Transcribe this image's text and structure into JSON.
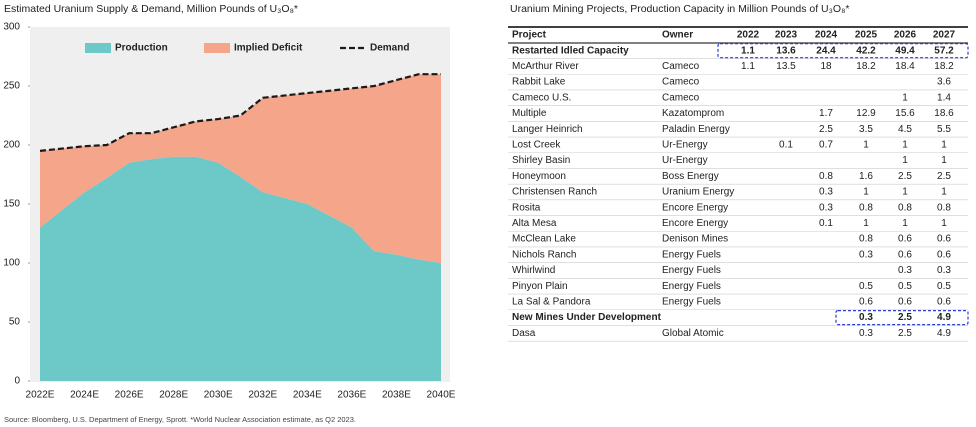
{
  "chart_data": {
    "type": "area",
    "title": "Estimated Uranium Supply & Demand, Million Pounds of U₃O₈*",
    "categories": [
      "2022E",
      null,
      "2024E",
      null,
      "2026E",
      null,
      "2028E",
      null,
      "2030E",
      null,
      "2032E",
      null,
      "2034E",
      null,
      "2036E",
      null,
      "2038E",
      null,
      "2040E"
    ],
    "series": [
      {
        "name": "Production",
        "color": "#6cc9c8",
        "values": [
          130,
          145,
          160,
          172,
          185,
          188,
          190,
          190,
          185,
          173,
          160,
          155,
          150,
          140,
          130,
          110,
          107,
          103,
          100
        ]
      },
      {
        "name": "Implied Deficit",
        "color": "#f4a58a",
        "values": [
          65,
          52,
          39,
          28,
          25,
          22,
          25,
          30,
          37,
          52,
          80,
          87,
          94,
          106,
          118,
          140,
          148,
          157,
          160
        ]
      },
      {
        "name": "Demand",
        "color": "#1a1a1a",
        "values": [
          195,
          197,
          199,
          200,
          210,
          210,
          215,
          220,
          222,
          225,
          240,
          242,
          244,
          246,
          248,
          250,
          255,
          260,
          260
        ]
      }
    ],
    "ylim": [
      0,
      300
    ],
    "yticks": [
      0,
      50,
      100,
      150,
      200,
      250,
      300
    ]
  },
  "source": "Source: Bloomberg, U.S. Department of Energy, Sprott. *World Nuclear Association estimate, as Q2 2023.",
  "table": {
    "title": "Uranium Mining Projects, Production Capacity in Million Pounds of U₃O₈*",
    "columns": [
      "Project",
      "Owner",
      "2022",
      "2023",
      "2024",
      "2025",
      "2026",
      "2027"
    ],
    "rows": [
      [
        "Restarted Idled Capacity",
        null,
        1.1,
        13.6,
        24.4,
        42.2,
        49.4,
        57.2
      ],
      [
        "McArthur River",
        "Cameco",
        1.1,
        13.5,
        18,
        18.2,
        18.4,
        18.2
      ],
      [
        "Rabbit Lake",
        "Cameco",
        null,
        null,
        null,
        null,
        null,
        3.6
      ],
      [
        "Cameco U.S.",
        "Cameco",
        null,
        null,
        null,
        null,
        1,
        1.4
      ],
      [
        "Multiple",
        "Kazatomprom",
        null,
        null,
        1.7,
        12.9,
        15.6,
        18.6
      ],
      [
        "Langer Heinrich",
        "Paladin Energy",
        null,
        null,
        2.5,
        3.5,
        4.5,
        5.5
      ],
      [
        "Lost Creek",
        "Ur-Energy",
        null,
        0.1,
        0.7,
        1,
        1,
        1
      ],
      [
        "Shirley Basin",
        "Ur-Energy",
        null,
        null,
        null,
        null,
        1,
        1
      ],
      [
        "Honeymoon",
        "Boss Energy",
        null,
        null,
        0.8,
        1.6,
        2.5,
        2.5
      ],
      [
        "Christensen Ranch",
        "Uranium Energy",
        null,
        null,
        0.3,
        1,
        1,
        1
      ],
      [
        "Rosita",
        "Encore Energy",
        null,
        null,
        0.3,
        0.8,
        0.8,
        0.8
      ],
      [
        "Alta Mesa",
        "Encore Energy",
        null,
        null,
        0.1,
        1,
        1,
        1
      ],
      [
        "McClean Lake",
        "Denison Mines",
        null,
        null,
        null,
        0.8,
        0.6,
        0.6
      ],
      [
        "Nichols Ranch",
        "Energy Fuels",
        null,
        null,
        null,
        0.3,
        0.6,
        0.6
      ],
      [
        "Whirlwind",
        "Energy Fuels",
        null,
        null,
        null,
        null,
        0.3,
        0.3
      ],
      [
        "Pinyon Plain",
        "Energy Fuels",
        null,
        null,
        null,
        0.5,
        0.5,
        0.5
      ],
      [
        "La Sal & Pandora",
        "Energy Fuels",
        null,
        null,
        null,
        0.6,
        0.6,
        0.6
      ],
      [
        "New Mines Under Development",
        null,
        null,
        null,
        null,
        0.3,
        2.5,
        4.9
      ],
      [
        "Dasa",
        "Global Atomic",
        null,
        null,
        null,
        0.3,
        2.5,
        4.9
      ]
    ]
  }
}
